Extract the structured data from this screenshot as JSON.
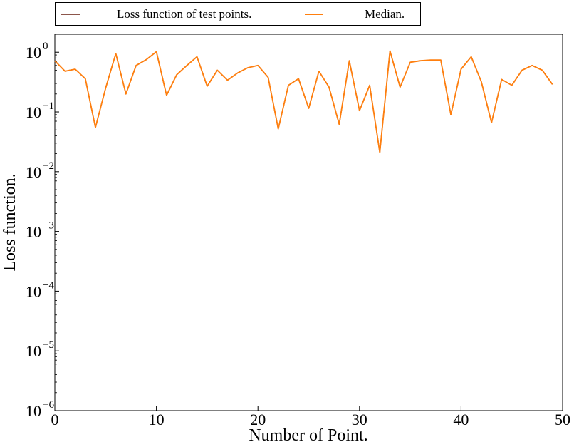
{
  "chart_data": {
    "type": "line",
    "xlabel": "Number of Point.",
    "ylabel": "Loss function.",
    "xlim": [
      0,
      50
    ],
    "ylim": [
      1e-06,
      2
    ],
    "yscale": "log",
    "grid": false,
    "legend_placement": "top (above plot)",
    "x_ticks": [
      0,
      10,
      20,
      30,
      40,
      50
    ],
    "x_tick_labels": [
      "0",
      "10",
      "20",
      "30",
      "40",
      "50"
    ],
    "y_ticks": [
      {
        "value": 1e-06,
        "base": "10",
        "exp": "−6"
      },
      {
        "value": 1e-05,
        "base": "10",
        "exp": "−5"
      },
      {
        "value": 0.0001,
        "base": "10",
        "exp": "−4"
      },
      {
        "value": 0.001,
        "base": "10",
        "exp": "−3"
      },
      {
        "value": 0.01,
        "base": "10",
        "exp": "−2"
      },
      {
        "value": 0.1,
        "base": "10",
        "exp": "−1"
      },
      {
        "value": 1,
        "base": "10",
        "exp": "0"
      }
    ],
    "x": [
      0,
      1,
      2,
      3,
      4,
      5,
      6,
      7,
      8,
      9,
      10,
      11,
      12,
      13,
      14,
      15,
      16,
      17,
      18,
      19,
      20,
      21,
      22,
      23,
      24,
      25,
      26,
      27,
      28,
      29,
      30,
      31,
      32,
      33,
      34,
      35,
      36,
      37,
      38,
      39,
      40,
      41,
      42,
      43,
      44,
      45,
      46,
      47,
      48,
      49
    ],
    "series": [
      {
        "name": "Loss function of test points.",
        "color": "#8c564b",
        "values": [
          0.72,
          0.48,
          0.52,
          0.36,
          0.055,
          0.25,
          0.95,
          0.2,
          0.6,
          0.75,
          1.02,
          0.19,
          0.42,
          0.6,
          0.84,
          0.27,
          0.5,
          0.34,
          0.45,
          0.55,
          0.6,
          0.38,
          0.052,
          0.28,
          0.36,
          0.115,
          0.48,
          0.26,
          0.062,
          0.72,
          0.105,
          0.28,
          0.021,
          1.05,
          0.26,
          0.68,
          0.72,
          0.74,
          0.74,
          0.09,
          0.52,
          0.84,
          0.32,
          0.066,
          0.35,
          0.28,
          0.5,
          0.6,
          0.5,
          0.29
        ]
      },
      {
        "name": "Median.",
        "color": "#ff7f0e",
        "values": [
          0.72,
          0.48,
          0.52,
          0.36,
          0.055,
          0.25,
          0.95,
          0.2,
          0.6,
          0.75,
          1.02,
          0.19,
          0.42,
          0.6,
          0.84,
          0.27,
          0.5,
          0.34,
          0.45,
          0.55,
          0.6,
          0.38,
          0.052,
          0.28,
          0.36,
          0.115,
          0.48,
          0.26,
          0.062,
          0.72,
          0.105,
          0.28,
          0.021,
          1.05,
          0.26,
          0.68,
          0.72,
          0.74,
          0.74,
          0.09,
          0.52,
          0.84,
          0.32,
          0.066,
          0.35,
          0.28,
          0.5,
          0.6,
          0.5,
          0.29
        ]
      }
    ]
  }
}
